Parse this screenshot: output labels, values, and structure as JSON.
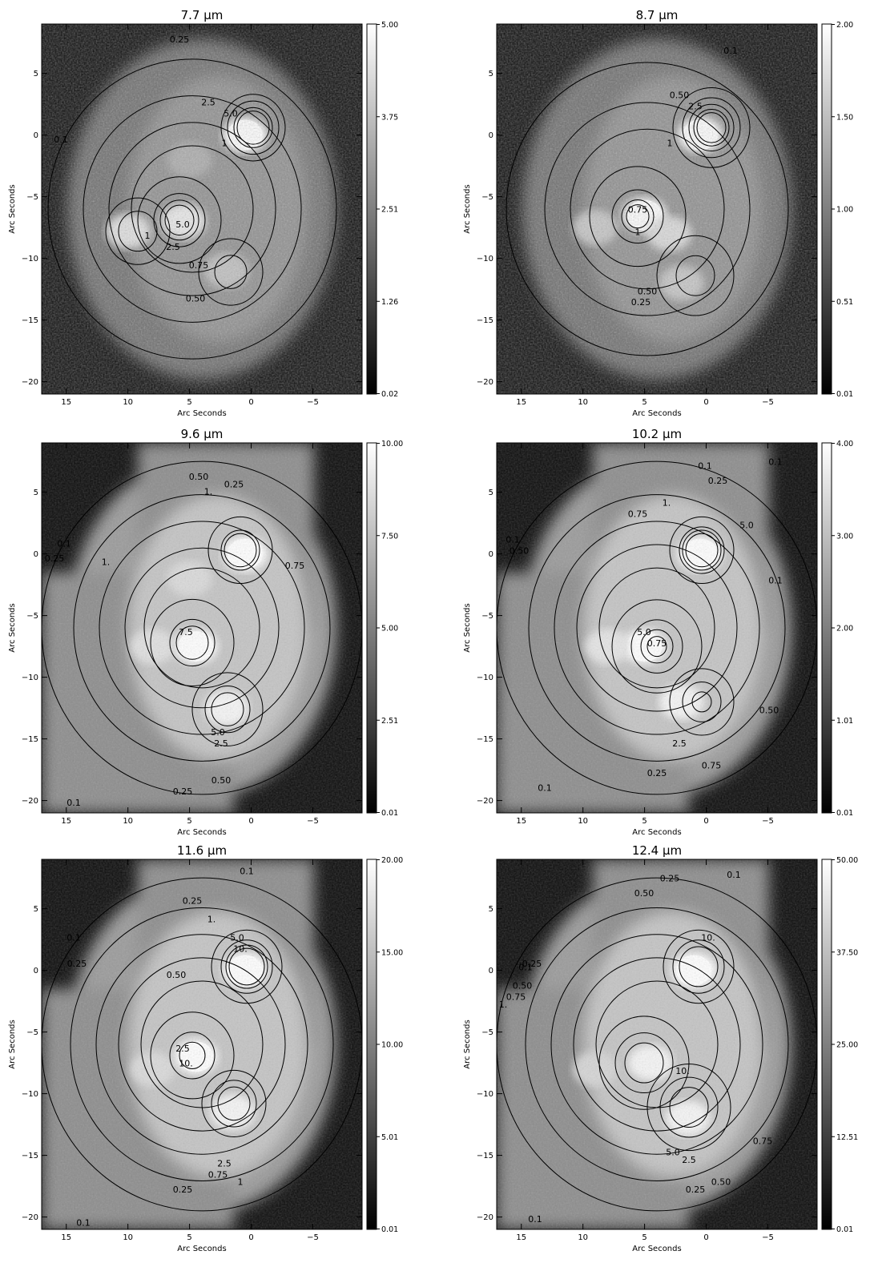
{
  "colors": {
    "background": "#ffffff",
    "ink": "#000000",
    "map_low": "#000000",
    "map_high": "#ffffff"
  },
  "chart_data": [
    {
      "type": "heatmap",
      "title": "7.7 μm",
      "xlabel": "Arc Seconds",
      "ylabel": "Arc Seconds",
      "x_ticks": [
        15,
        10,
        5,
        0,
        -5
      ],
      "y_ticks": [
        5,
        0,
        -5,
        -10,
        -15,
        -20
      ],
      "xlim": [
        17,
        -9
      ],
      "ylim": [
        -21,
        9
      ],
      "colorbar_ticks": [
        "5.00",
        "3.75",
        "2.51",
        "1.26",
        "0.02"
      ],
      "colorbar_range": [
        0.02,
        5.0
      ],
      "contour_labels": [
        "0.25",
        "0.1",
        "2.5",
        "5.0",
        "1",
        "5.0",
        "2.5",
        "0.75",
        "0.50",
        "1"
      ],
      "sources": [
        {
          "x": 0.5,
          "y": 0,
          "peak": 5.0
        },
        {
          "x": 5.5,
          "y": -7,
          "peak": 4.0
        },
        {
          "x": 10,
          "y": -7.8,
          "peak": 3.5
        },
        {
          "x": 2,
          "y": -11,
          "peak": 2.0
        },
        {
          "x": 5,
          "y": -2,
          "peak": 1.0
        }
      ]
    },
    {
      "type": "heatmap",
      "title": "8.7 μm",
      "xlabel": "Arc Seconds",
      "ylabel": "Arc Seconds",
      "x_ticks": [
        15,
        10,
        5,
        0,
        -5
      ],
      "y_ticks": [
        5,
        0,
        -5,
        -10,
        -15,
        -20
      ],
      "xlim": [
        17,
        -9
      ],
      "ylim": [
        -21,
        9
      ],
      "colorbar_ticks": [
        "2.00",
        "1.50",
        "1.00",
        "0.51",
        "0.01"
      ],
      "colorbar_range": [
        0.01,
        2.0
      ],
      "contour_labels": [
        "0.1",
        "0.50",
        "2.5",
        "1",
        "0.75",
        "1",
        "0.50",
        "0.25"
      ],
      "sources": [
        {
          "x": 0.5,
          "y": 0,
          "peak": 2.0
        },
        {
          "x": 5,
          "y": -6.5,
          "peak": 1.9
        },
        {
          "x": 3,
          "y": -8,
          "peak": 1.3
        },
        {
          "x": 9,
          "y": -7.5,
          "peak": 0.9
        },
        {
          "x": 2,
          "y": -12,
          "peak": 0.9
        }
      ]
    },
    {
      "type": "heatmap",
      "title": "9.6 μm",
      "xlabel": "Arc Seconds",
      "ylabel": "Arc Seconds",
      "x_ticks": [
        15,
        10,
        5,
        0,
        -5
      ],
      "y_ticks": [
        5,
        0,
        -5,
        -10,
        -15,
        -20
      ],
      "xlim": [
        17,
        -9
      ],
      "ylim": [
        -21,
        9
      ],
      "colorbar_ticks": [
        "10.00",
        "7.50",
        "5.00",
        "2.51",
        "0.01"
      ],
      "colorbar_range": [
        0.01,
        10.0
      ],
      "contour_labels": [
        "0.25",
        "0.50",
        "1.",
        "0.1",
        "0.25",
        "1.",
        "0.75",
        "7.5",
        "5.0",
        "2.5",
        "0.50",
        "0.25",
        "0.1"
      ],
      "sources": [
        {
          "x": 0.5,
          "y": 0,
          "peak": 10.0
        },
        {
          "x": 4.5,
          "y": -7.5,
          "peak": 9.5
        },
        {
          "x": 2,
          "y": -12.5,
          "peak": 9.0
        },
        {
          "x": 8,
          "y": -7.5,
          "peak": 7.0
        },
        {
          "x": 5,
          "y": -2,
          "peak": 6.5
        }
      ]
    },
    {
      "type": "heatmap",
      "title": "10.2 μm",
      "xlabel": "Arc Seconds",
      "ylabel": "Arc Seconds",
      "x_ticks": [
        15,
        10,
        5,
        0,
        -5
      ],
      "y_ticks": [
        5,
        0,
        -5,
        -10,
        -15,
        -20
      ],
      "xlim": [
        17,
        -9
      ],
      "ylim": [
        -21,
        9
      ],
      "colorbar_ticks": [
        "4.00",
        "3.00",
        "2.00",
        "1.01",
        "0.01"
      ],
      "colorbar_range": [
        0.01,
        4.0
      ],
      "contour_labels": [
        "0.1",
        "0.25",
        "0.1",
        "1.",
        "0.75",
        "5.0",
        "0.1",
        "0.50",
        "0.1",
        "5.0",
        "0.75",
        "2.5",
        "0.75",
        "0.50",
        "0.25",
        "0.1"
      ],
      "sources": [
        {
          "x": 0.5,
          "y": 0,
          "peak": 4.0
        },
        {
          "x": 5,
          "y": -7.5,
          "peak": 3.8
        },
        {
          "x": 2,
          "y": -12,
          "peak": 3.6
        },
        {
          "x": 8,
          "y": -7.5,
          "peak": 3.0
        }
      ]
    },
    {
      "type": "heatmap",
      "title": "11.6 μm",
      "xlabel": "Arc Seconds",
      "ylabel": "Arc Seconds",
      "x_ticks": [
        15,
        10,
        5,
        0,
        -5
      ],
      "y_ticks": [
        5,
        0,
        -5,
        -10,
        -15,
        -20
      ],
      "xlim": [
        17,
        -9
      ],
      "ylim": [
        -21,
        9
      ],
      "colorbar_ticks": [
        "20.00",
        "15.00",
        "10.00",
        "5.01",
        "0.01"
      ],
      "colorbar_range": [
        0.01,
        20.0
      ],
      "contour_labels": [
        "0.1",
        "0.25",
        "1.",
        "0.50",
        "0.1",
        "0.25",
        "5.0",
        "10.",
        "2.5",
        "10.",
        "2.5",
        "0.75",
        "1",
        "0.25",
        "0.1"
      ],
      "sources": [
        {
          "x": 0.5,
          "y": 0,
          "peak": 20.0
        },
        {
          "x": 4.5,
          "y": -7,
          "peak": 19.0
        },
        {
          "x": 1.5,
          "y": -11.5,
          "peak": 18.0
        },
        {
          "x": 8,
          "y": -8,
          "peak": 13.0
        }
      ]
    },
    {
      "type": "heatmap",
      "title": "12.4 μm",
      "xlabel": "Arc Seconds",
      "ylabel": "Arc Seconds",
      "x_ticks": [
        15,
        10,
        5,
        0,
        -5
      ],
      "y_ticks": [
        5,
        0,
        -5,
        -10,
        -15,
        -20
      ],
      "xlim": [
        17,
        -9
      ],
      "ylim": [
        -21,
        9
      ],
      "colorbar_ticks": [
        "50.00",
        "37.50",
        "25.00",
        "12.51",
        "0.01"
      ],
      "colorbar_range": [
        0.01,
        50.0
      ],
      "contour_labels": [
        "0.1",
        "0.50",
        "0.25",
        "0.1",
        "0.25",
        "0.50",
        "0.75",
        "1.",
        "10.",
        "10.",
        "5.0",
        "2.5",
        "0.75",
        "0.50",
        "0.25",
        "0.1"
      ],
      "sources": [
        {
          "x": 1,
          "y": 0,
          "peak": 50.0
        },
        {
          "x": 4.5,
          "y": -7.5,
          "peak": 45.0
        },
        {
          "x": 1.5,
          "y": -12,
          "peak": 45.0
        },
        {
          "x": 9,
          "y": -8,
          "peak": 30.0
        }
      ]
    }
  ]
}
